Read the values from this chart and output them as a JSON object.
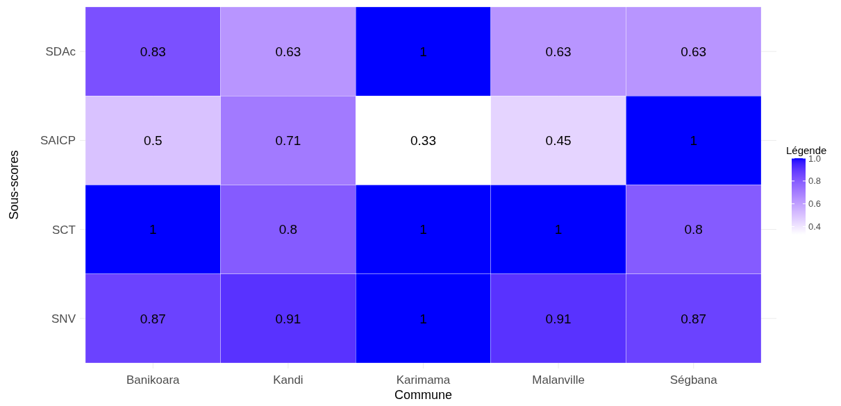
{
  "chart_data": {
    "type": "heatmap",
    "xlabel": "Commune",
    "ylabel": "Sous-scores",
    "legend_title": "Légende",
    "categories": [
      "Banikoara",
      "Kandi",
      "Karimama",
      "Malanville",
      "Ségbana"
    ],
    "y_categories": [
      "SDAc",
      "SAICP",
      "SCT",
      "SNV"
    ],
    "cells": [
      [
        0.83,
        0.63,
        1,
        0.63,
        0.63
      ],
      [
        0.5,
        0.71,
        0.33,
        0.45,
        1
      ],
      [
        1,
        0.8,
        1,
        1,
        0.8
      ],
      [
        0.87,
        0.91,
        1,
        0.91,
        0.87
      ]
    ],
    "data_labels": true,
    "grid": true,
    "clim": [
      0.33,
      1
    ],
    "colors": [
      "#ffffff",
      "#0000ff"
    ],
    "cticks": [
      {
        "value": 0.4,
        "label": "0.4"
      },
      {
        "value": 0.6,
        "label": "0.6"
      },
      {
        "value": 0.8,
        "label": "0.8"
      },
      {
        "value": 1,
        "label": "1.0"
      }
    ]
  }
}
